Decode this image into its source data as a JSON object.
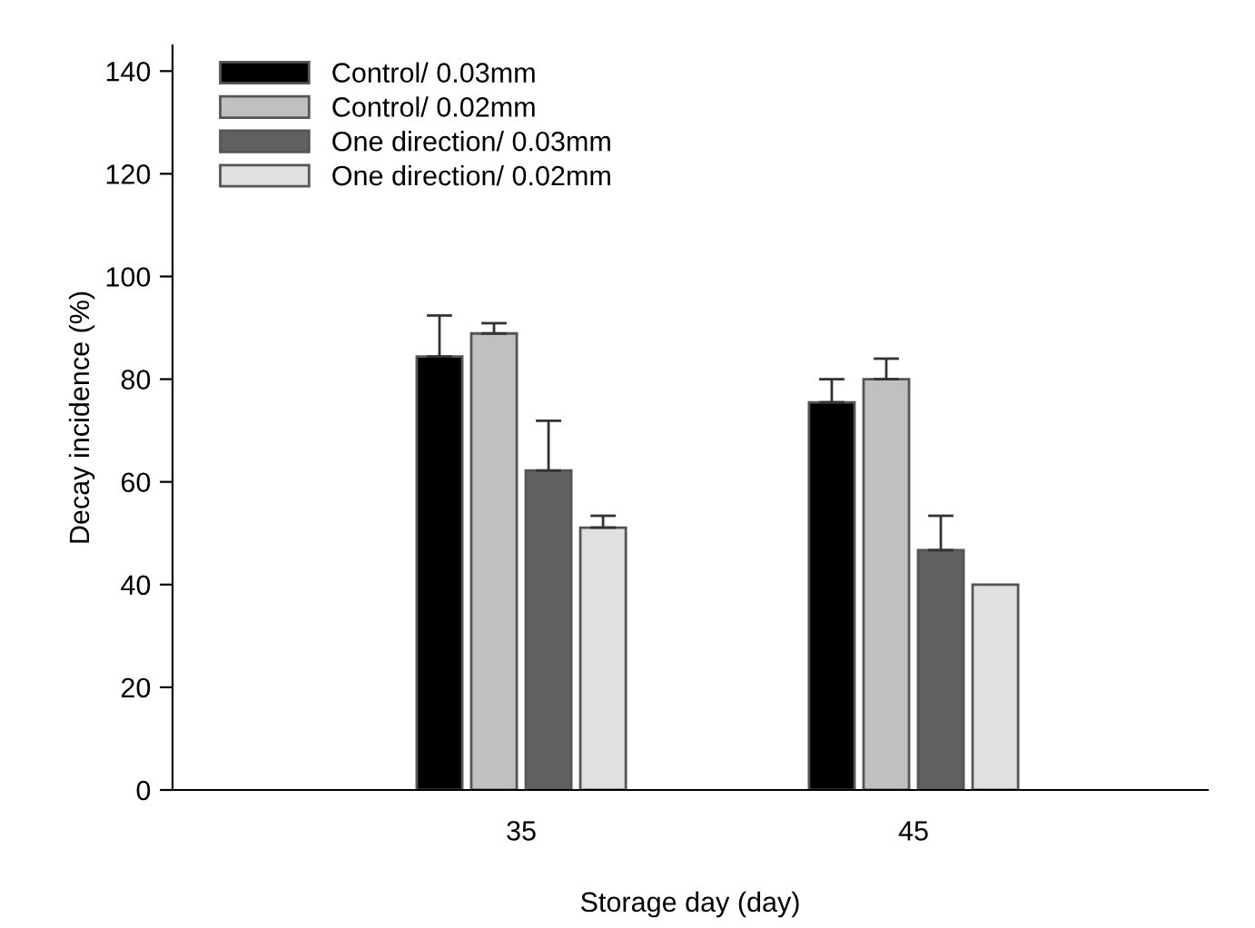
{
  "chart_data": {
    "type": "bar",
    "xlabel": "Storage day (day)",
    "ylabel": "Decay incidence (%)",
    "categories": [
      "35",
      "45"
    ],
    "series": [
      {
        "name": "Control/ 0.03mm",
        "color": "#000000",
        "values": [
          84.4,
          75.5
        ],
        "errors": [
          8,
          4.5
        ]
      },
      {
        "name": "Control/ 0.02mm",
        "color": "#c0c0c0",
        "values": [
          88.9,
          80
        ],
        "errors": [
          2,
          4
        ]
      },
      {
        "name": "One direction/ 0.03mm",
        "color": "#606060",
        "values": [
          62.2,
          46.7
        ],
        "errors": [
          9.7,
          6.7
        ]
      },
      {
        "name": "One direction/ 0.02mm",
        "color": "#e0e0e0",
        "values": [
          51.1,
          40.0
        ],
        "errors": [
          2.3,
          null
        ]
      }
    ],
    "ylim": [
      0,
      145
    ],
    "yticks": [
      0,
      20,
      40,
      60,
      80,
      100,
      120,
      140
    ],
    "legend": "top left",
    "grid": false
  }
}
